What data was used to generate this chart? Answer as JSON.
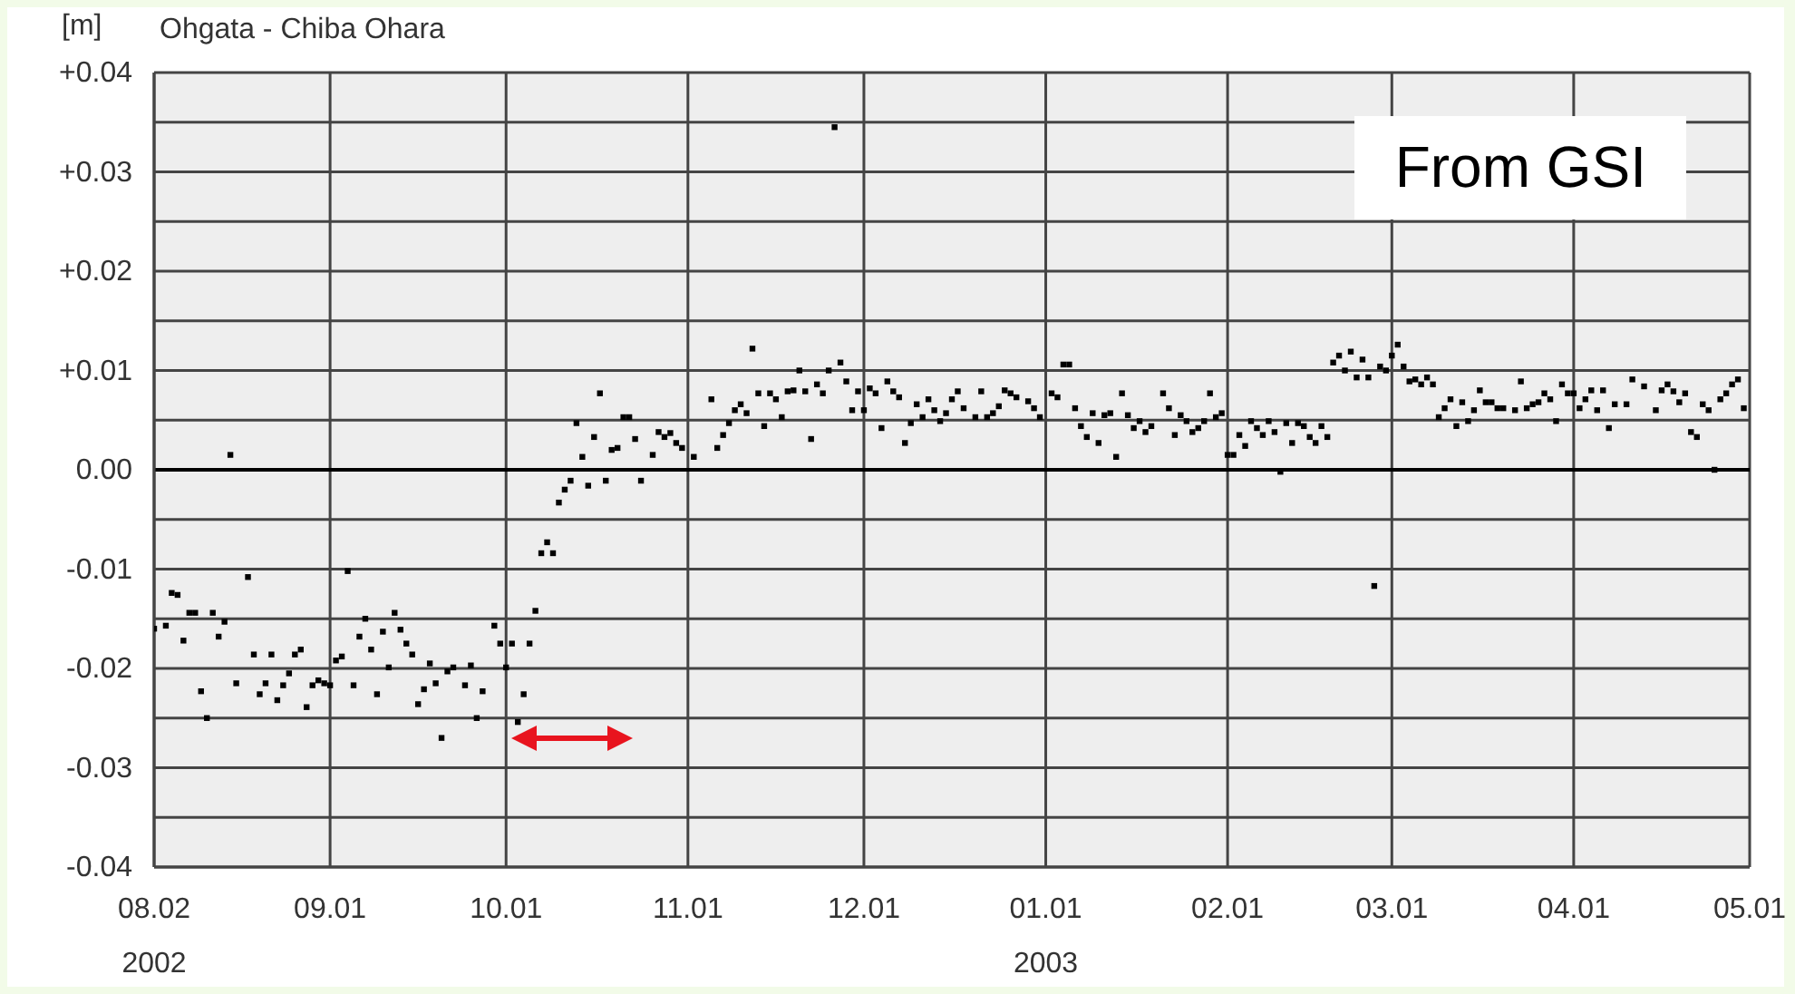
{
  "chart_data": {
    "type": "scatter",
    "title": "Ohgata - Chiba Ohara",
    "ylabel": "[m]",
    "annotations": [
      "From GSI"
    ],
    "color": "#000000",
    "marker": "square",
    "grid": true,
    "xlim": [
      "2002-08-02",
      "2003-05-01"
    ],
    "xticks": [
      {
        "value": "2002-08-02",
        "label": "08.02\n2002"
      },
      {
        "value": "2002-09-01",
        "label": "09.01"
      },
      {
        "value": "2002-10-01",
        "label": "10.01"
      },
      {
        "value": "2002-11-01",
        "label": "11.01"
      },
      {
        "value": "2002-12-01",
        "label": "12.01"
      },
      {
        "value": "2003-01-01",
        "label": "01.01\n2003"
      },
      {
        "value": "2003-02-01",
        "label": "02.01"
      },
      {
        "value": "2003-03-01",
        "label": "03.01"
      },
      {
        "value": "2003-04-01",
        "label": "04.01"
      },
      {
        "value": "2003-05-01",
        "label": "05.01"
      }
    ],
    "ylim": [
      -0.04,
      0.04
    ],
    "yticks": [
      {
        "value": -0.04,
        "label": "-0.04"
      },
      {
        "value": -0.035,
        "label": null
      },
      {
        "value": -0.03,
        "label": "-0.03"
      },
      {
        "value": -0.025,
        "label": null
      },
      {
        "value": -0.02,
        "label": "-0.02"
      },
      {
        "value": -0.015,
        "label": null
      },
      {
        "value": -0.01,
        "label": "-0.01"
      },
      {
        "value": -0.005,
        "label": null
      },
      {
        "value": 0,
        "label": "0.00"
      },
      {
        "value": 0.005,
        "label": null
      },
      {
        "value": 0.01,
        "label": "+0.01"
      },
      {
        "value": 0.015,
        "label": null
      },
      {
        "value": 0.02,
        "label": "+0.02"
      },
      {
        "value": 0.025,
        "label": null
      },
      {
        "value": 0.03,
        "label": "+0.03"
      },
      {
        "value": 0.035,
        "label": null
      },
      {
        "value": 0.04,
        "label": "+0.04"
      }
    ],
    "ref_lines": [
      {
        "axis": "y",
        "value": 0,
        "color": "#000000"
      }
    ],
    "x": [
      "2002-08-02",
      "2002-08-04",
      "2002-08-05",
      "2002-08-06",
      "2002-08-07",
      "2002-08-08",
      "2002-08-09",
      "2002-08-10",
      "2002-08-11",
      "2002-08-12",
      "2002-08-13",
      "2002-08-14",
      "2002-08-15",
      "2002-08-16",
      "2002-08-18",
      "2002-08-19",
      "2002-08-20",
      "2002-08-21",
      "2002-08-22",
      "2002-08-23",
      "2002-08-24",
      "2002-08-25",
      "2002-08-26",
      "2002-08-27",
      "2002-08-28",
      "2002-08-29",
      "2002-08-30",
      "2002-08-31",
      "2002-09-01",
      "2002-09-02",
      "2002-09-03",
      "2002-09-04",
      "2002-09-05",
      "2002-09-06",
      "2002-09-07",
      "2002-09-08",
      "2002-09-09",
      "2002-09-10",
      "2002-09-11",
      "2002-09-12",
      "2002-09-13",
      "2002-09-14",
      "2002-09-15",
      "2002-09-16",
      "2002-09-17",
      "2002-09-18",
      "2002-09-19",
      "2002-09-20",
      "2002-09-21",
      "2002-09-22",
      "2002-09-24",
      "2002-09-25",
      "2002-09-26",
      "2002-09-27",
      "2002-09-29",
      "2002-09-30",
      "2002-10-01",
      "2002-10-02",
      "2002-10-03",
      "2002-10-04",
      "2002-10-05",
      "2002-10-06",
      "2002-10-07",
      "2002-10-08",
      "2002-10-09",
      "2002-10-10",
      "2002-10-11",
      "2002-10-12",
      "2002-10-13",
      "2002-10-14",
      "2002-10-15",
      "2002-10-16",
      "2002-10-17",
      "2002-10-18",
      "2002-10-19",
      "2002-10-20",
      "2002-10-21",
      "2002-10-22",
      "2002-10-23",
      "2002-10-24",
      "2002-10-26",
      "2002-10-27",
      "2002-10-28",
      "2002-10-29",
      "2002-10-30",
      "2002-10-31",
      "2002-11-02",
      "2002-11-05",
      "2002-11-06",
      "2002-11-07",
      "2002-11-08",
      "2002-11-09",
      "2002-11-10",
      "2002-11-11",
      "2002-11-12",
      "2002-11-13",
      "2002-11-14",
      "2002-11-15",
      "2002-11-16",
      "2002-11-17",
      "2002-11-18",
      "2002-11-19",
      "2002-11-20",
      "2002-11-21",
      "2002-11-22",
      "2002-11-23",
      "2002-11-24",
      "2002-11-25",
      "2002-11-26",
      "2002-11-27",
      "2002-11-28",
      "2002-11-29",
      "2002-11-30",
      "2002-12-01",
      "2002-12-02",
      "2002-12-03",
      "2002-12-04",
      "2002-12-05",
      "2002-12-06",
      "2002-12-07",
      "2002-12-08",
      "2002-12-09",
      "2002-12-10",
      "2002-12-11",
      "2002-12-12",
      "2002-12-13",
      "2002-12-14",
      "2002-12-15",
      "2002-12-16",
      "2002-12-17",
      "2002-12-18",
      "2002-12-20",
      "2002-12-21",
      "2002-12-22",
      "2002-12-23",
      "2002-12-24",
      "2002-12-25",
      "2002-12-26",
      "2002-12-27",
      "2002-12-29",
      "2002-12-30",
      "2002-12-31",
      "2003-01-02",
      "2003-01-03",
      "2003-01-04",
      "2003-01-05",
      "2003-01-06",
      "2003-01-07",
      "2003-01-08",
      "2003-01-09",
      "2003-01-10",
      "2003-01-11",
      "2003-01-12",
      "2003-01-13",
      "2003-01-14",
      "2003-01-15",
      "2003-01-16",
      "2003-01-17",
      "2003-01-18",
      "2003-01-19",
      "2003-01-21",
      "2003-01-22",
      "2003-01-23",
      "2003-01-24",
      "2003-01-25",
      "2003-01-26",
      "2003-01-27",
      "2003-01-28",
      "2003-01-29",
      "2003-01-30",
      "2003-01-31",
      "2003-02-01",
      "2003-02-02",
      "2003-02-03",
      "2003-02-04",
      "2003-02-05",
      "2003-02-06",
      "2003-02-07",
      "2003-02-08",
      "2003-02-09",
      "2003-02-10",
      "2003-02-11",
      "2003-02-12",
      "2003-02-13",
      "2003-02-14",
      "2003-02-15",
      "2003-02-16",
      "2003-02-17",
      "2003-02-18",
      "2003-02-19",
      "2003-02-20",
      "2003-02-21",
      "2003-02-22",
      "2003-02-23",
      "2003-02-24",
      "2003-02-25",
      "2003-02-26",
      "2003-02-27",
      "2003-02-28",
      "2003-03-01",
      "2003-03-02",
      "2003-03-03",
      "2003-03-04",
      "2003-03-05",
      "2003-03-06",
      "2003-03-07",
      "2003-03-08",
      "2003-03-09",
      "2003-03-10",
      "2003-03-11",
      "2003-03-12",
      "2003-03-13",
      "2003-03-14",
      "2003-03-15",
      "2003-03-16",
      "2003-03-17",
      "2003-03-18",
      "2003-03-19",
      "2003-03-20",
      "2003-03-22",
      "2003-03-23",
      "2003-03-24",
      "2003-03-25",
      "2003-03-26",
      "2003-03-27",
      "2003-03-28",
      "2003-03-29",
      "2003-03-30",
      "2003-03-31",
      "2003-04-01",
      "2003-04-02",
      "2003-04-03",
      "2003-04-04",
      "2003-04-05",
      "2003-04-06",
      "2003-04-07",
      "2003-04-08",
      "2003-04-10",
      "2003-04-11",
      "2003-04-13",
      "2003-04-15",
      "2003-04-16",
      "2003-04-17",
      "2003-04-18",
      "2003-04-19",
      "2003-04-20",
      "2003-04-21",
      "2003-04-22",
      "2003-04-23",
      "2003-04-24",
      "2003-04-25",
      "2003-04-26",
      "2003-04-27",
      "2003-04-28",
      "2003-04-29",
      "2003-04-30"
    ],
    "values": [
      -0.016,
      -0.0157,
      -0.0124,
      -0.0126,
      -0.0172,
      -0.0144,
      -0.0144,
      -0.0223,
      -0.025,
      -0.0144,
      -0.0168,
      -0.0153,
      0.0015,
      -0.0215,
      -0.0108,
      -0.0186,
      -0.0226,
      -0.0215,
      -0.0186,
      -0.0232,
      -0.0217,
      -0.0205,
      -0.0186,
      -0.0181,
      -0.0239,
      -0.0217,
      -0.0212,
      -0.0215,
      -0.0217,
      -0.0192,
      -0.0188,
      -0.0102,
      -0.0217,
      -0.0168,
      -0.015,
      -0.0181,
      -0.0226,
      -0.0163,
      -0.0199,
      -0.0144,
      -0.0161,
      -0.0175,
      -0.0186,
      -0.0236,
      -0.0221,
      -0.0195,
      -0.0215,
      -0.027,
      -0.0203,
      -0.0199,
      -0.0217,
      -0.0197,
      -0.025,
      -0.0223,
      -0.0157,
      -0.0175,
      -0.0199,
      -0.0175,
      -0.0254,
      -0.0226,
      -0.0175,
      -0.0142,
      -0.0084,
      -0.0073,
      -0.0084,
      -0.0033,
      -0.002,
      -0.0011,
      0.0047,
      0.0013,
      -0.0016,
      0.0033,
      0.0077,
      -0.0011,
      0.002,
      0.0022,
      0.0053,
      0.0053,
      0.0031,
      -0.0011,
      0.0015,
      0.0038,
      0.0033,
      0.0037,
      0.0027,
      0.0022,
      0.0013,
      0.0071,
      0.0022,
      0.0035,
      0.0047,
      0.006,
      0.0066,
      0.0057,
      0.0122,
      0.0077,
      0.0044,
      0.0077,
      0.0071,
      0.0053,
      0.0079,
      0.008,
      0.01,
      0.0079,
      0.0031,
      0.0086,
      0.0077,
      0.01,
      0.0345,
      0.0108,
      0.0089,
      0.006,
      0.0079,
      0.006,
      0.0082,
      0.0077,
      0.0042,
      0.0089,
      0.0079,
      0.0073,
      0.0027,
      0.0047,
      0.0066,
      0.0053,
      0.0071,
      0.006,
      0.0049,
      0.0057,
      0.0071,
      0.0079,
      0.0062,
      0.0053,
      0.0079,
      0.0053,
      0.0057,
      0.0064,
      0.008,
      0.0077,
      0.0073,
      0.0069,
      0.0062,
      0.0053,
      0.0077,
      0.0073,
      0.0106,
      0.0106,
      0.0062,
      0.0044,
      0.0033,
      0.0057,
      0.0027,
      0.0055,
      0.0057,
      0.0013,
      0.0077,
      0.0055,
      0.0042,
      0.0049,
      0.0038,
      0.0044,
      0.0077,
      0.0062,
      0.0035,
      0.0055,
      0.0049,
      0.0038,
      0.0042,
      0.0049,
      0.0077,
      0.0053,
      0.0057,
      0.0015,
      0.0015,
      0.0035,
      0.0024,
      0.0049,
      0.0042,
      0.0035,
      0.0049,
      0.0038,
      -0.0002,
      0.0047,
      0.0027,
      0.0047,
      0.0044,
      0.0033,
      0.0027,
      0.0044,
      0.0033,
      0.0108,
      0.0115,
      0.01,
      0.0119,
      0.0093,
      0.0111,
      0.0093,
      -0.0117,
      0.0104,
      0.01,
      0.0115,
      0.0126,
      0.0104,
      0.0089,
      0.0091,
      0.0086,
      0.0093,
      0.0086,
      0.0053,
      0.0062,
      0.0071,
      0.0044,
      0.0068,
      0.0049,
      0.006,
      0.008,
      0.0068,
      0.0068,
      0.0062,
      0.0062,
      0.006,
      0.0089,
      0.0062,
      0.0066,
      0.0068,
      0.0077,
      0.0071,
      0.0049,
      0.0086,
      0.0077,
      0.0077,
      0.0062,
      0.0071,
      0.008,
      0.006,
      0.008,
      0.0042,
      0.0066,
      0.0066,
      0.0091,
      0.0084,
      0.006,
      0.008,
      0.0086,
      0.0079,
      0.0068,
      0.0077,
      0.0038,
      0.0033,
      0.0066,
      0.006,
      0.0,
      0.0071,
      0.0077,
      0.0086,
      0.0091,
      0.0062
    ]
  }
}
